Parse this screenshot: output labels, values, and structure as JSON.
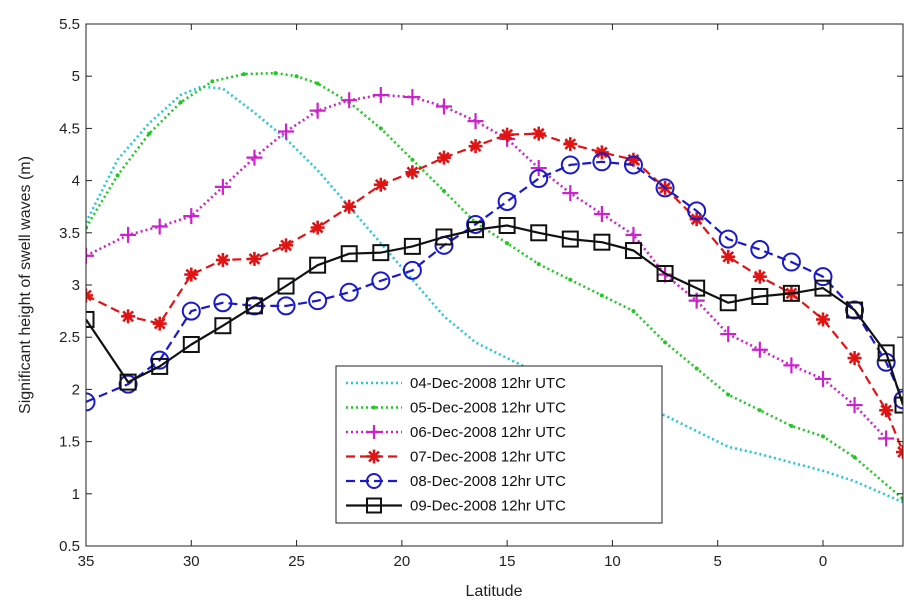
{
  "chart_data": {
    "type": "line",
    "xlabel": "Latitude",
    "ylabel": "Significant height of swell waves (m)",
    "xlim": [
      35,
      -3.8
    ],
    "ylim": [
      0.5,
      5.5
    ],
    "x_reversed": true,
    "xticks": [
      "35",
      "30",
      "25",
      "20",
      "15",
      "10",
      "5",
      "0"
    ],
    "yticks": [
      "0.5",
      "1",
      "1.5",
      "2",
      "2.5",
      "3",
      "3.5",
      "4",
      "4.5",
      "5",
      "5.5"
    ],
    "grid": false,
    "legend_position": "bottom-center",
    "series": [
      {
        "name": "04-Dec-2008 12hr UTC",
        "color": "#22c8d8",
        "style": "dotted",
        "marker": "none",
        "x": [
          35,
          33.5,
          32,
          30.5,
          29.5,
          28.5,
          27,
          25.5,
          24,
          22.5,
          21,
          19.5,
          18,
          16.5,
          15,
          13.5,
          12,
          10.5,
          9,
          7.5,
          6,
          4.5,
          3,
          1.5,
          0,
          -1.5,
          -3.8
        ],
        "y": [
          3.6,
          4.2,
          4.55,
          4.82,
          4.9,
          4.88,
          4.65,
          4.4,
          4.1,
          3.75,
          3.4,
          3.05,
          2.7,
          2.45,
          2.3,
          2.15,
          2.05,
          1.95,
          1.85,
          1.75,
          1.6,
          1.45,
          1.38,
          1.3,
          1.22,
          1.12,
          0.92
        ]
      },
      {
        "name": "05-Dec-2008 12hr UTC",
        "color": "#22c822",
        "style": "dotted",
        "marker": "dot",
        "x": [
          35,
          33.5,
          32,
          30.5,
          29,
          27.5,
          26,
          25,
          24,
          22.5,
          21,
          19.5,
          18,
          16.5,
          15,
          13.5,
          12,
          10.5,
          9,
          7.5,
          6,
          4.5,
          3,
          1.5,
          0,
          -1.5,
          -3.8
        ],
        "y": [
          3.55,
          4.05,
          4.45,
          4.75,
          4.95,
          5.02,
          5.03,
          5.0,
          4.93,
          4.75,
          4.5,
          4.2,
          3.9,
          3.6,
          3.4,
          3.2,
          3.05,
          2.9,
          2.75,
          2.45,
          2.2,
          1.95,
          1.8,
          1.65,
          1.55,
          1.35,
          0.95
        ]
      },
      {
        "name": "06-Dec-2008 12hr UTC",
        "color": "#cc22cc",
        "style": "dotted",
        "marker": "plus",
        "x": [
          35,
          33,
          31.5,
          30,
          28.5,
          27,
          25.5,
          24,
          22.5,
          21,
          19.5,
          18,
          16.5,
          15,
          13.5,
          12,
          10.5,
          9,
          7.5,
          6,
          4.5,
          3,
          1.5,
          0,
          -1.5,
          -3
        ],
        "y": [
          3.28,
          3.48,
          3.56,
          3.66,
          3.94,
          4.22,
          4.47,
          4.67,
          4.77,
          4.82,
          4.8,
          4.71,
          4.57,
          4.4,
          4.12,
          3.88,
          3.68,
          3.48,
          3.1,
          2.85,
          2.53,
          2.38,
          2.23,
          2.1,
          1.85,
          1.53
        ]
      },
      {
        "name": "07-Dec-2008 12hr UTC",
        "color": "#e01414",
        "style": "dashed",
        "marker": "star",
        "x": [
          35,
          33,
          31.5,
          30,
          28.5,
          27,
          25.5,
          24,
          22.5,
          21,
          19.5,
          18,
          16.5,
          15,
          13.5,
          12,
          10.5,
          9,
          7.5,
          6,
          4.5,
          3,
          1.5,
          0,
          -1.5,
          -3,
          -3.8
        ],
        "y": [
          2.9,
          2.7,
          2.63,
          3.1,
          3.24,
          3.25,
          3.38,
          3.55,
          3.75,
          3.96,
          4.08,
          4.22,
          4.33,
          4.44,
          4.45,
          4.35,
          4.27,
          4.2,
          3.93,
          3.63,
          3.27,
          3.08,
          2.92,
          2.67,
          2.3,
          1.8,
          1.4
        ]
      },
      {
        "name": "08-Dec-2008 12hr UTC",
        "color": "#1a1acc",
        "style": "dashed",
        "marker": "circle",
        "x": [
          35,
          33,
          31.5,
          30,
          28.5,
          27,
          25.5,
          24,
          22.5,
          21,
          19.5,
          18,
          16.5,
          15,
          13.5,
          12,
          10.5,
          9,
          7.5,
          6,
          4.5,
          3,
          1.5,
          0,
          -1.5,
          -3,
          -3.8
        ],
        "y": [
          1.88,
          2.05,
          2.28,
          2.75,
          2.83,
          2.8,
          2.8,
          2.85,
          2.93,
          3.04,
          3.14,
          3.38,
          3.58,
          3.8,
          4.02,
          4.15,
          4.18,
          4.15,
          3.93,
          3.71,
          3.44,
          3.34,
          3.22,
          3.08,
          2.76,
          2.26,
          1.9
        ]
      },
      {
        "name": "09-Dec-2008 12hr UTC",
        "color": "#111111",
        "style": "solid",
        "marker": "square",
        "x": [
          35,
          33,
          31.5,
          30,
          28.5,
          27,
          25.5,
          24,
          22.5,
          21,
          19.5,
          18,
          16.5,
          15,
          13.5,
          12,
          10.5,
          9,
          7.5,
          6,
          4.5,
          3,
          1.5,
          0,
          -1.5,
          -3,
          -3.8
        ],
        "y": [
          2.67,
          2.07,
          2.22,
          2.43,
          2.61,
          2.8,
          2.99,
          3.19,
          3.3,
          3.31,
          3.37,
          3.46,
          3.53,
          3.57,
          3.5,
          3.44,
          3.41,
          3.33,
          3.11,
          2.97,
          2.83,
          2.89,
          2.92,
          2.97,
          2.76,
          2.35,
          1.85
        ]
      }
    ]
  }
}
